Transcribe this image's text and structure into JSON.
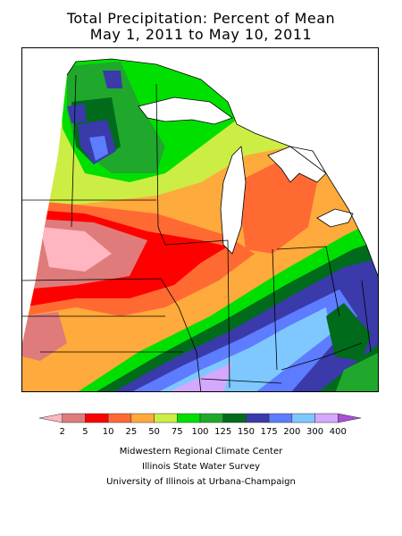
{
  "title_line1": "Total Precipitation: Percent of Mean",
  "title_line2": "May 1, 2011 to May 10, 2011",
  "legend": {
    "colors": [
      "#ffb6c1",
      "#e07b7b",
      "#ff0000",
      "#ff6a33",
      "#ffaa3c",
      "#ccee44",
      "#00e000",
      "#1fa82c",
      "#006b1a",
      "#3a3aaa",
      "#5d7cff",
      "#7ec8ff",
      "#d4a8ff",
      "#a84fd8"
    ],
    "ticks": [
      "2",
      "5",
      "10",
      "25",
      "50",
      "75",
      "100",
      "125",
      "150",
      "175",
      "200",
      "300",
      "400"
    ]
  },
  "credits": [
    "Midwestern Regional Climate Center",
    "Illinois State Water Survey",
    "University of Illinois at Urbana-Champaign"
  ]
}
